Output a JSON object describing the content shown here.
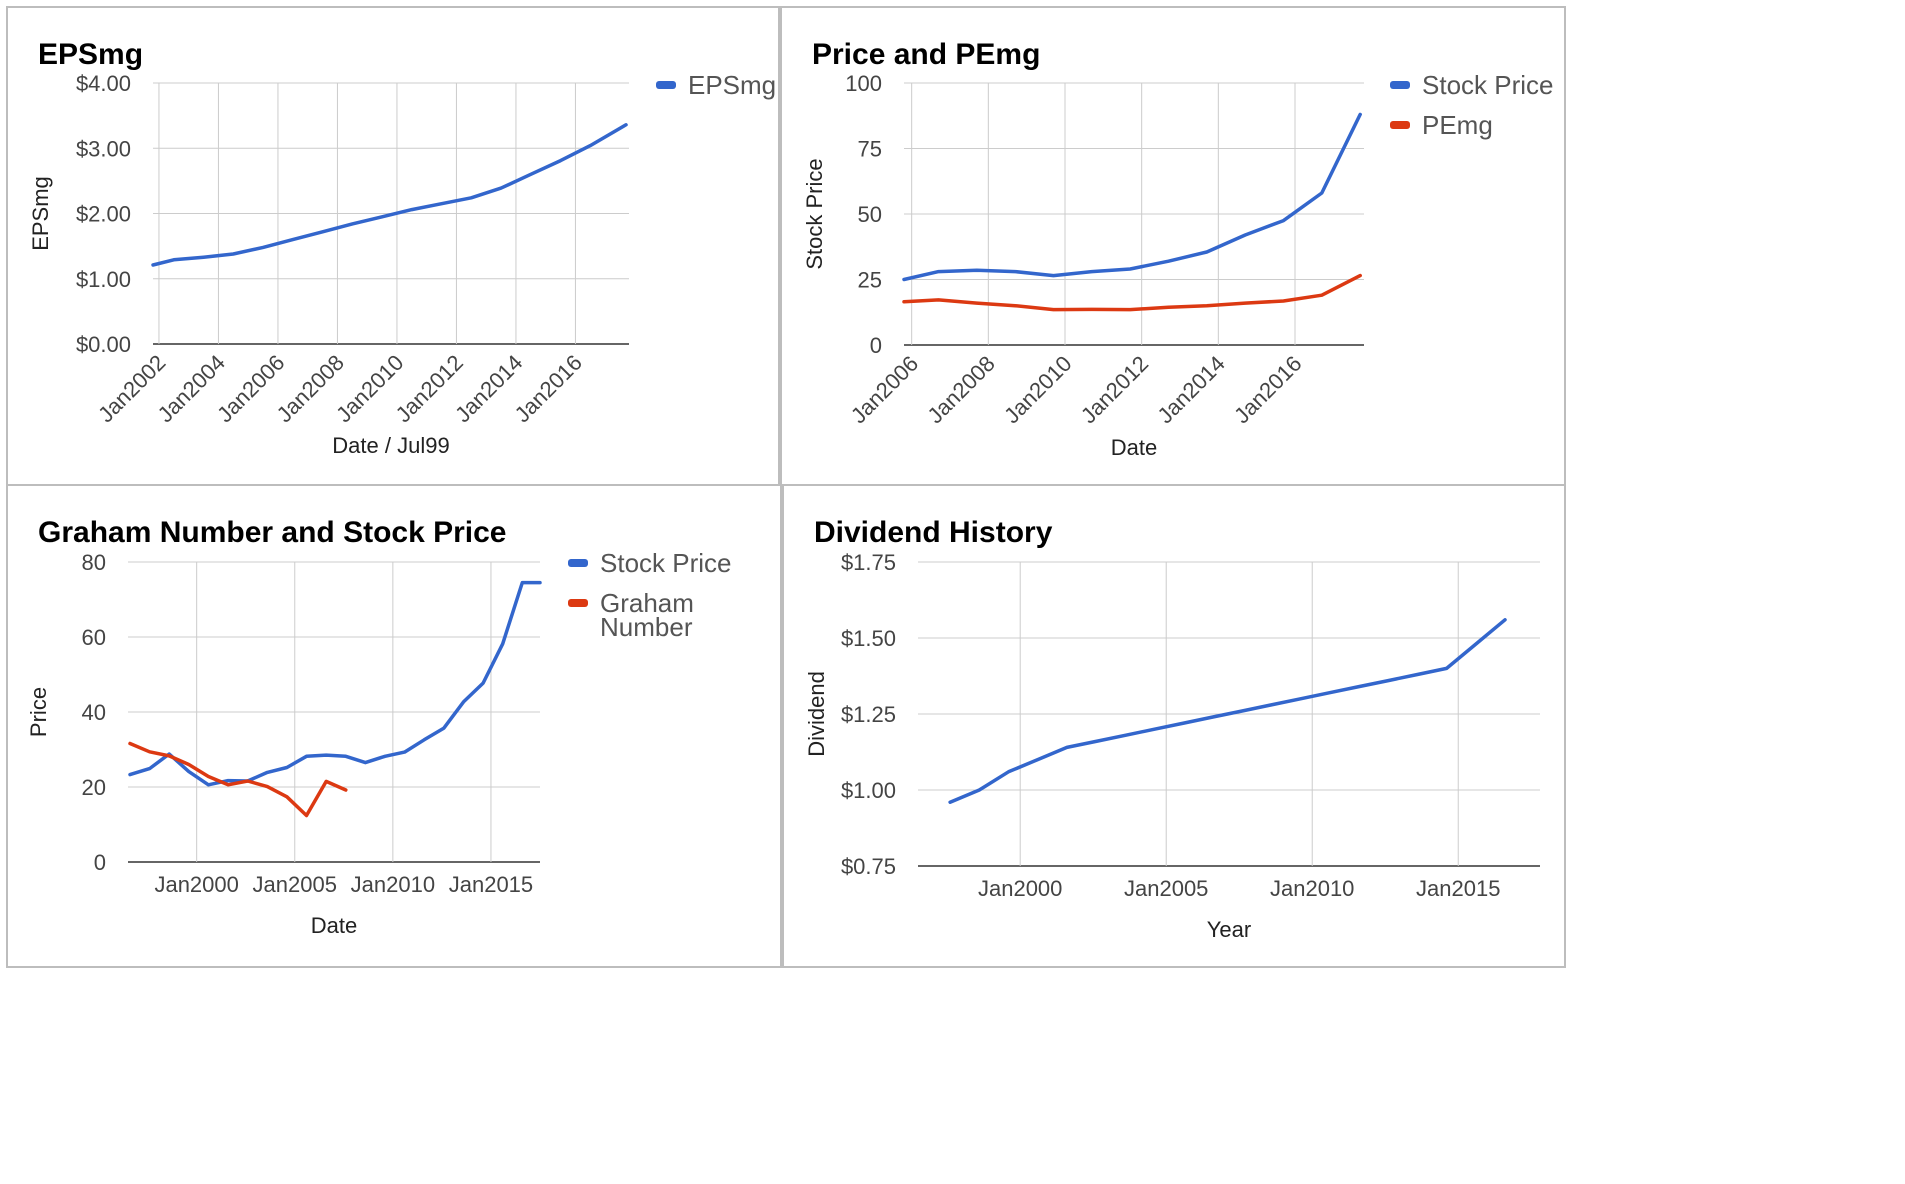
{
  "charts": [
    {
      "id": "eps",
      "type": "line",
      "title": "EPSmg",
      "xlabel": "Date / Jul99",
      "ylabel": "EPSmg",
      "yticks": [
        "$0.00",
        "$1.00",
        "$2.00",
        "$3.00",
        "$4.00"
      ],
      "ylim": [
        0,
        4
      ],
      "xlim": [
        2001.8,
        2017.8
      ],
      "xticks": [
        {
          "label": "Jan2002",
          "value": 2002
        },
        {
          "label": "Jan2004",
          "value": 2004
        },
        {
          "label": "Jan2006",
          "value": 2006
        },
        {
          "label": "Jan2008",
          "value": 2008
        },
        {
          "label": "Jan2010",
          "value": 2010
        },
        {
          "label": "Jan2012",
          "value": 2012
        },
        {
          "label": "Jan2014",
          "value": 2014
        },
        {
          "label": "Jan2016",
          "value": 2016
        }
      ],
      "series": [
        {
          "name": "EPSmg",
          "color": "#3366cc",
          "x": [
            2001.8,
            2002.5,
            2003.5,
            2004.5,
            2005.5,
            2006.5,
            2007.5,
            2008.5,
            2009.5,
            2010.5,
            2011.5,
            2012.5,
            2013.5,
            2014.5,
            2015.5,
            2016.5,
            2017.7
          ],
          "y": [
            1.21,
            1.29,
            1.33,
            1.38,
            1.48,
            1.6,
            1.72,
            1.84,
            1.95,
            2.06,
            2.15,
            2.24,
            2.39,
            2.6,
            2.81,
            3.04,
            3.36
          ]
        }
      ]
    },
    {
      "id": "pe",
      "type": "line",
      "title": "Price and PEmg",
      "xlabel": "Date",
      "ylabel": "Stock Price",
      "yticks": [
        "0",
        "25",
        "50",
        "75",
        "100"
      ],
      "ylim": [
        0,
        100
      ],
      "xlim": [
        2005.8,
        2017.8
      ],
      "xticks": [
        {
          "label": "Jan2006",
          "value": 2006
        },
        {
          "label": "Jan2008",
          "value": 2008
        },
        {
          "label": "Jan2010",
          "value": 2010
        },
        {
          "label": "Jan2012",
          "value": 2012
        },
        {
          "label": "Jan2014",
          "value": 2014
        },
        {
          "label": "Jan2016",
          "value": 2016
        }
      ],
      "series": [
        {
          "name": "Stock Price",
          "color": "#3366cc",
          "x": [
            2005.8,
            2006.7,
            2007.7,
            2008.7,
            2009.7,
            2010.7,
            2011.7,
            2012.7,
            2013.7,
            2014.7,
            2015.7,
            2016.7,
            2017.7
          ],
          "y": [
            25,
            28,
            28.5,
            28,
            26.5,
            28,
            29,
            32,
            35.5,
            42,
            47.5,
            58,
            88
          ]
        },
        {
          "name": "PEmg",
          "color": "#dc3912",
          "x": [
            2005.8,
            2006.7,
            2007.7,
            2008.7,
            2009.7,
            2010.7,
            2011.7,
            2012.7,
            2013.7,
            2014.7,
            2015.7,
            2016.7,
            2017.7
          ],
          "y": [
            16.5,
            17.2,
            16,
            15,
            13.5,
            13.6,
            13.5,
            14.4,
            15,
            16,
            16.8,
            19,
            26.5
          ]
        }
      ]
    },
    {
      "id": "graham",
      "type": "line",
      "title": "Graham Number and Stock Price",
      "xlabel": "Date",
      "ylabel": "Price",
      "yticks": [
        "0",
        "20",
        "40",
        "60",
        "80"
      ],
      "ylim": [
        0,
        80
      ],
      "xlim": [
        1996.5,
        2017.5
      ],
      "xticks": [
        {
          "label": "Jan2000",
          "value": 2000
        },
        {
          "label": "Jan2005",
          "value": 2005
        },
        {
          "label": "Jan2010",
          "value": 2010
        },
        {
          "label": "Jan2015",
          "value": 2015
        }
      ],
      "series": [
        {
          "name": "Stock Price",
          "color": "#3366cc",
          "x": [
            1996.6,
            1997.6,
            1998.6,
            1999.6,
            2000.6,
            2001.6,
            2002.6,
            2003.6,
            2004.6,
            2005.6,
            2006.6,
            2007.6,
            2008.6,
            2009.6,
            2010.6,
            2011.6,
            2012.6,
            2013.6,
            2014.6,
            2015.6,
            2016.6,
            2017.5
          ],
          "y": [
            23.3,
            24.9,
            28.8,
            24.1,
            20.6,
            21.7,
            21.6,
            23.9,
            25.2,
            28.2,
            28.5,
            28.2,
            26.5,
            28.2,
            29.3,
            32.6,
            35.7,
            42.7,
            47.7,
            58.2,
            74.5,
            74.5
          ]
        },
        {
          "name": "Graham Number",
          "color": "#dc3912",
          "x": [
            1996.6,
            1997.6,
            1998.6,
            1999.6,
            2000.6,
            2001.6,
            2002.6,
            2003.6,
            2004.6,
            2005.6,
            2006.6,
            2007.6
          ],
          "y": [
            31.6,
            29.4,
            28.3,
            26,
            22.8,
            20.6,
            21.6,
            20.1,
            17.4,
            12.4,
            21.5,
            19.2
          ]
        }
      ]
    },
    {
      "id": "dividend",
      "type": "line",
      "title": "Dividend History",
      "xlabel": "Year",
      "ylabel": "Dividend",
      "yticks": [
        "$0.75",
        "$1.00",
        "$1.25",
        "$1.50",
        "$1.75"
      ],
      "ylim": [
        0.75,
        1.75
      ],
      "xlim": [
        1996.5,
        2017.8
      ],
      "xticks": [
        {
          "label": "Jan2000",
          "value": 2000
        },
        {
          "label": "Jan2005",
          "value": 2005
        },
        {
          "label": "Jan2010",
          "value": 2010
        },
        {
          "label": "Jan2015",
          "value": 2015
        }
      ],
      "series": [
        {
          "name": "Dividend",
          "color": "#3366cc",
          "x": [
            1997.6,
            1998.6,
            1999.6,
            2000.6,
            2001.6,
            2002.6,
            2003.6,
            2004.6,
            2005.6,
            2006.6,
            2007.6,
            2008.6,
            2009.6,
            2010.6,
            2011.6,
            2012.6,
            2013.6,
            2014.6,
            2015.6,
            2016.6
          ],
          "y": [
            0.96,
            1.0,
            1.06,
            1.1,
            1.14,
            1.16,
            1.18,
            1.2,
            1.22,
            1.24,
            1.26,
            1.28,
            1.3,
            1.32,
            1.34,
            1.36,
            1.38,
            1.4,
            1.48,
            1.56
          ]
        }
      ]
    }
  ]
}
